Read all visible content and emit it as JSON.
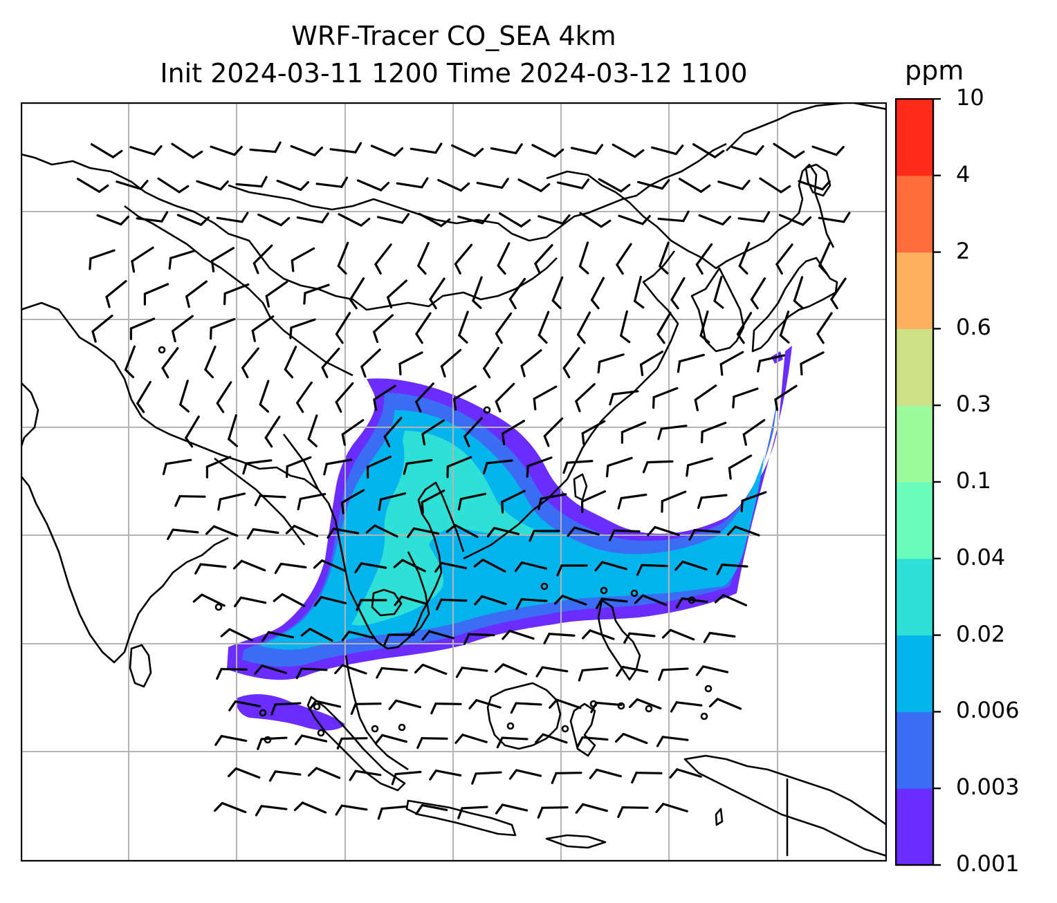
{
  "title": {
    "line1": "WRF-Tracer CO_SEA 4km",
    "line2": "Init 2024-03-11 1200 Time 2024-03-12 1100"
  },
  "colorbar": {
    "unit": "ppm",
    "levels": [
      "0.001",
      "0.003",
      "0.006",
      "0.02",
      "0.04",
      "0.1",
      "0.3",
      "0.6",
      "2",
      "4",
      "10"
    ],
    "colors": [
      "#6a2cff",
      "#3a6cf4",
      "#04b4ec",
      "#2ee0d6",
      "#6cfcbc",
      "#9cfa9c",
      "#d0e086",
      "#fdb060",
      "#fe6c3c",
      "#ff2a1a"
    ]
  },
  "map": {
    "plume_colors": {
      "outer": "#6a2cff",
      "mid": "#3a6cf4",
      "core": "#04b4ec",
      "high": "#2ee0d6"
    },
    "gridline_color": "#b4b4b4",
    "coastline_color": "#000000",
    "wind_symbol": "barb"
  }
}
